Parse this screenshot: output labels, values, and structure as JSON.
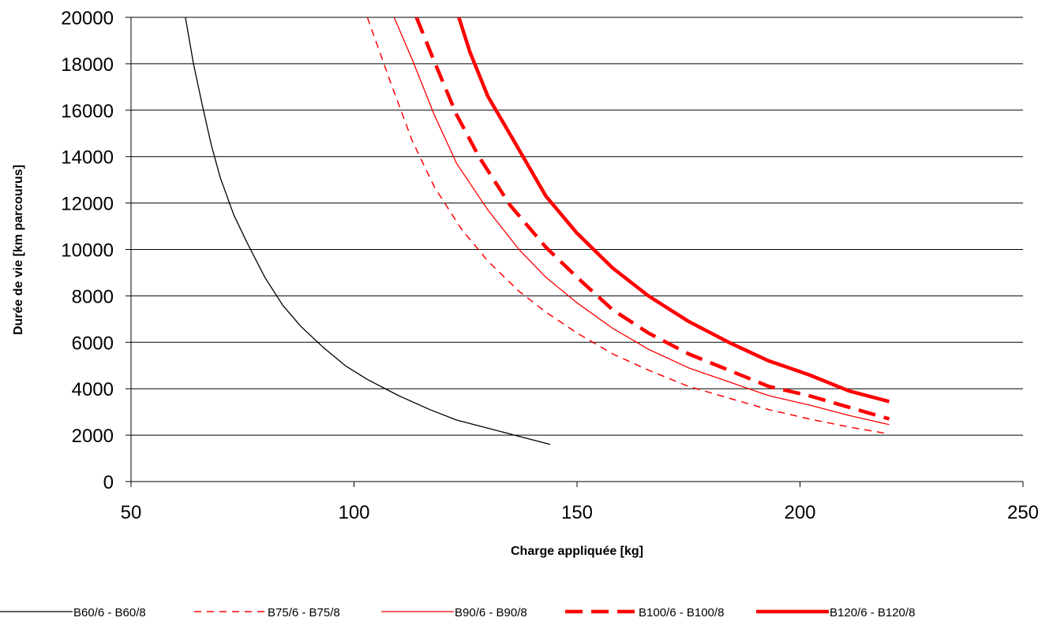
{
  "chart_data": {
    "type": "line",
    "title": "",
    "xlabel": "Charge appliquée [kg]",
    "ylabel": "Durée de vie [km parcourus]",
    "xlim": [
      50,
      250
    ],
    "ylim": [
      0,
      20000
    ],
    "xticks": [
      50,
      100,
      150,
      200,
      250
    ],
    "yticks": [
      0,
      2000,
      4000,
      6000,
      8000,
      10000,
      12000,
      14000,
      16000,
      18000,
      20000
    ],
    "grid": "horizontal",
    "legend_position": "bottom",
    "series": [
      {
        "name": "B60/6 - B60/8",
        "color": "#000000",
        "style": "thin-solid",
        "points": [
          [
            62.2,
            20000
          ],
          [
            64,
            18000
          ],
          [
            66,
            16200
          ],
          [
            68,
            14500
          ],
          [
            70,
            13100
          ],
          [
            73,
            11500
          ],
          [
            76,
            10300
          ],
          [
            80,
            8800
          ],
          [
            84,
            7600
          ],
          [
            88,
            6700
          ],
          [
            93,
            5800
          ],
          [
            98,
            5000
          ],
          [
            103,
            4400
          ],
          [
            110,
            3700
          ],
          [
            117,
            3100
          ],
          [
            123,
            2650
          ],
          [
            130,
            2300
          ],
          [
            137,
            1950
          ],
          [
            144,
            1600
          ]
        ]
      },
      {
        "name": "B75/6 - B75/8",
        "color": "#ff0000",
        "style": "thin-dashed",
        "points": [
          [
            103,
            20000
          ],
          [
            108,
            17300
          ],
          [
            113,
            14700
          ],
          [
            118,
            12700
          ],
          [
            124,
            10900
          ],
          [
            130,
            9500
          ],
          [
            137,
            8200
          ],
          [
            143,
            7300
          ],
          [
            150,
            6400
          ],
          [
            158,
            5500
          ],
          [
            166,
            4800
          ],
          [
            175,
            4100
          ],
          [
            184,
            3600
          ],
          [
            193,
            3100
          ],
          [
            202,
            2700
          ],
          [
            211,
            2350
          ],
          [
            220,
            2050
          ]
        ]
      },
      {
        "name": "B90/6 - B90/8",
        "color": "#ff0000",
        "style": "thin-solid",
        "points": [
          [
            109,
            20000
          ],
          [
            113,
            18200
          ],
          [
            118,
            15800
          ],
          [
            123,
            13700
          ],
          [
            130,
            11700
          ],
          [
            137,
            10000
          ],
          [
            143,
            8800
          ],
          [
            150,
            7700
          ],
          [
            158,
            6600
          ],
          [
            166,
            5700
          ],
          [
            175,
            4900
          ],
          [
            184,
            4300
          ],
          [
            193,
            3700
          ],
          [
            202,
            3300
          ],
          [
            211,
            2850
          ],
          [
            220,
            2450
          ]
        ]
      },
      {
        "name": "B100/6 - B100/8",
        "color": "#ff0000",
        "style": "thick-dashed",
        "points": [
          [
            114,
            20000
          ],
          [
            118,
            18100
          ],
          [
            123,
            15800
          ],
          [
            128,
            14000
          ],
          [
            135,
            11900
          ],
          [
            143,
            10100
          ],
          [
            150,
            8800
          ],
          [
            158,
            7400
          ],
          [
            166,
            6400
          ],
          [
            175,
            5500
          ],
          [
            184,
            4800
          ],
          [
            193,
            4100
          ],
          [
            202,
            3700
          ],
          [
            211,
            3200
          ],
          [
            220,
            2700
          ]
        ]
      },
      {
        "name": "B120/6 - B120/8",
        "color": "#ff0000",
        "style": "thick-solid",
        "points": [
          [
            123.5,
            20000
          ],
          [
            126,
            18500
          ],
          [
            130,
            16600
          ],
          [
            137,
            14300
          ],
          [
            143,
            12300
          ],
          [
            150,
            10700
          ],
          [
            158,
            9200
          ],
          [
            166,
            8000
          ],
          [
            175,
            6900
          ],
          [
            184,
            6000
          ],
          [
            193,
            5200
          ],
          [
            202,
            4600
          ],
          [
            211,
            3900
          ],
          [
            220,
            3450
          ]
        ]
      }
    ]
  }
}
